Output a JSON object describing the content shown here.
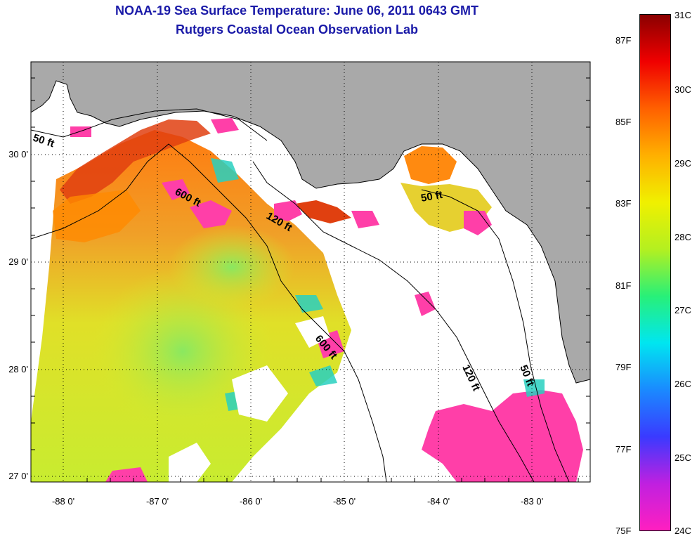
{
  "title_line1": "NOAA-19 Sea Surface Temperature:  June 06, 2011 0643 GMT",
  "title_line2": "Rutgers Coastal Ocean Observation Lab",
  "lat_labels": [
    "30 0'",
    "29 0'",
    "28 0'",
    "27 0'"
  ],
  "lon_labels": [
    "-88 0'",
    "-87 0'",
    "-86 0'",
    "-85 0'",
    "-84 0'",
    "-83 0'"
  ],
  "contour_labels": [
    "50 ft",
    "600 ft",
    "120 ft",
    "600 ft",
    "50 ft",
    "120 ft",
    "50 ft"
  ],
  "colorbar": {
    "fahrenheit_labels": [
      "87F",
      "85F",
      "83F",
      "81F",
      "79F",
      "77F",
      "75F"
    ],
    "celsius_labels": [
      "31C",
      "30C",
      "29C",
      "28C",
      "27C",
      "26C",
      "25C",
      "24C"
    ],
    "range_celsius": [
      24,
      31
    ],
    "colors": [
      "#ff1fc0",
      "#c020e0",
      "#3a3aff",
      "#1a8aff",
      "#00e6f0",
      "#28f078",
      "#b4f020",
      "#f0f000",
      "#ffb000",
      "#ff6000",
      "#f00000",
      "#8a0000"
    ]
  },
  "colors": {
    "land": "#a9a9a9",
    "no_data": "#ffffff",
    "title": "#1a1aa8",
    "cold_patch": "#ff3fa8",
    "warm_gulf": "#ff7a10",
    "mid_gulf": "#d8ea2a"
  }
}
